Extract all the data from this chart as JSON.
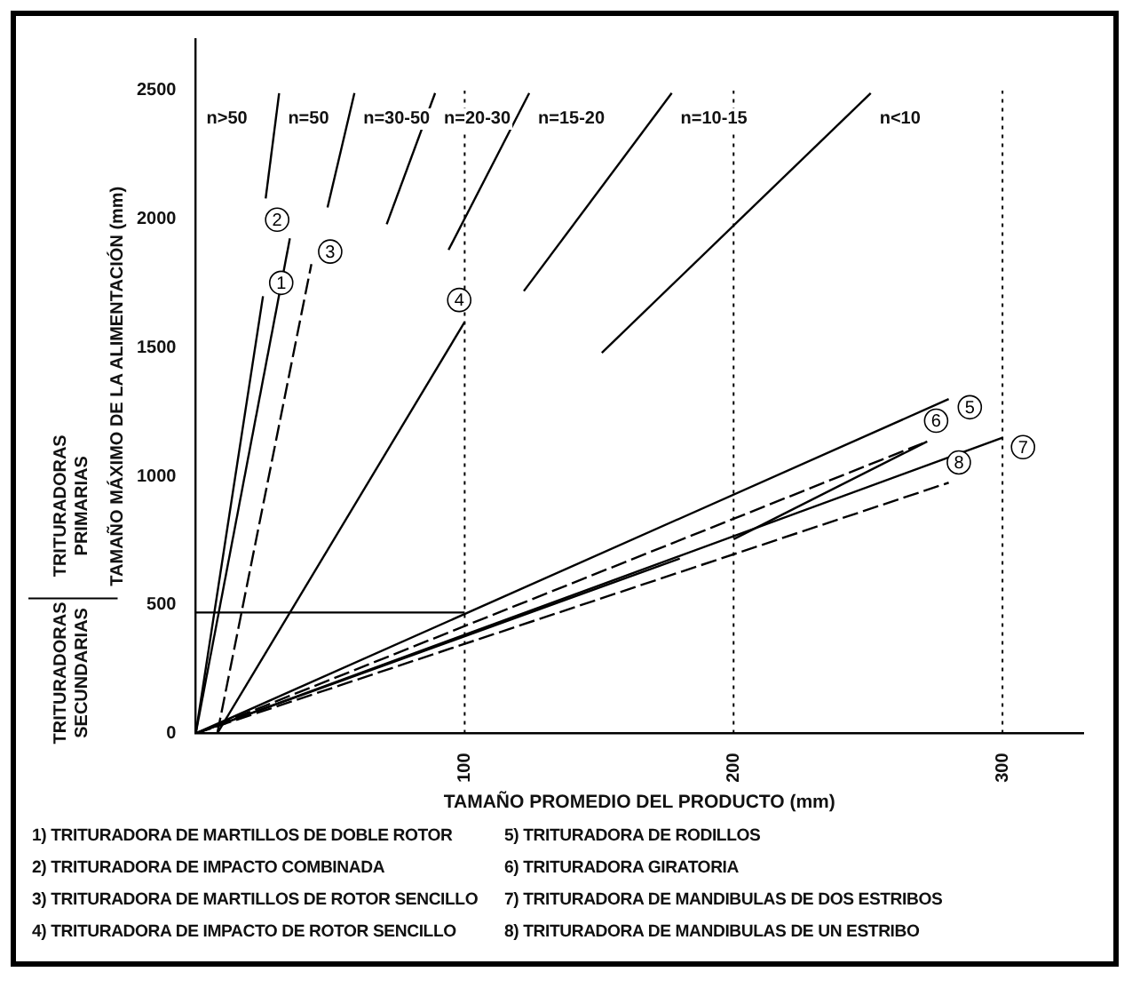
{
  "chart_data": {
    "type": "line",
    "xlabel": "TAMAÑO PROMEDIO DEL PRODUCTO (mm)",
    "ylabel": "TAMAÑO MÁXIMO DE LA ALIMENTACIÓN (mm)",
    "xlim": [
      0,
      330
    ],
    "ylim": [
      0,
      2700
    ],
    "xticks": [
      100,
      200,
      300
    ],
    "yticks": [
      0,
      500,
      1000,
      1500,
      2000,
      2500
    ],
    "grid": false,
    "legend": "bottom",
    "marker": "none",
    "series": [
      {
        "name": "1",
        "color": "#000000",
        "x": [
          0,
          25
        ],
        "values": [
          0,
          1700
        ],
        "line_style": "solid"
      },
      {
        "name": "2",
        "color": "#000000",
        "x": [
          0,
          35
        ],
        "values": [
          0,
          1925
        ],
        "line_style": "solid"
      },
      {
        "name": "3",
        "color": "#000000",
        "x": [
          8,
          43
        ],
        "values": [
          0,
          1825
        ],
        "line_style": "dashed"
      },
      {
        "name": "4",
        "color": "#000000",
        "x": [
          8,
          100
        ],
        "values": [
          0,
          1600
        ],
        "line_style": "solid"
      },
      {
        "name": "5",
        "color": "#000000",
        "x": [
          0,
          280
        ],
        "values": [
          0,
          1300
        ],
        "line_style": "solid"
      },
      {
        "name": "6",
        "color": "#000000",
        "x": [
          0,
          272
        ],
        "values": [
          0,
          1135
        ],
        "line_style": "dashed"
      },
      {
        "name": "7",
        "color": "#000000",
        "x": [
          0,
          300
        ],
        "values": [
          0,
          1150
        ],
        "line_style": "solid"
      },
      {
        "name": "8",
        "color": "#000000",
        "x": [
          0,
          280
        ],
        "values": [
          0,
          975
        ],
        "line_style": "dashed"
      },
      {
        "color": "#000000",
        "x": [
          0,
          180
        ],
        "values": [
          0,
          680
        ],
        "line_style": "solid"
      },
      {
        "color": "#000000",
        "x": [
          200,
          272
        ],
        "values": [
          755,
          1135
        ],
        "line_style": "solid"
      },
      {
        "color": "#000000",
        "x": [
          0,
          100
        ],
        "values": [
          470,
          470
        ],
        "line_style": "solid"
      },
      {
        "color": "#000000",
        "x": [
          26,
          31
        ],
        "values": [
          2080,
          2490
        ],
        "line_style": "solid"
      },
      {
        "color": "#000000",
        "x": [
          49,
          59
        ],
        "values": [
          2045,
          2490
        ],
        "line_style": "solid"
      },
      {
        "color": "#000000",
        "x": [
          71,
          89
        ],
        "values": [
          1980,
          2490
        ],
        "line_style": "solid"
      },
      {
        "color": "#000000",
        "x": [
          94,
          124
        ],
        "values": [
          1880,
          2490
        ],
        "line_style": "solid"
      },
      {
        "color": "#000000",
        "x": [
          122,
          177
        ],
        "values": [
          1720,
          2490
        ],
        "line_style": "solid"
      },
      {
        "color": "#000000",
        "x": [
          151,
          251
        ],
        "values": [
          1480,
          2490
        ],
        "line_style": "solid"
      }
    ],
    "ref_lines": [
      {
        "axis": "x",
        "value": 100,
        "color": "#000000",
        "line_style": "dotted"
      },
      {
        "axis": "x",
        "value": 200,
        "color": "#000000",
        "line_style": "dotted"
      },
      {
        "axis": "x",
        "value": 300,
        "color": "#000000",
        "line_style": "dotted"
      }
    ],
    "annotations": [
      "n>50",
      "n=50",
      "n=30-50",
      "n=20-30",
      "n=15-20",
      "n=10-15",
      "n<10",
      "TRITURADORAS PRIMARIAS",
      "TRITURADORAS SECUNDARIAS",
      "1) TRITURADORA DE MARTILLOS DE DOBLE ROTOR",
      "2) TRITURADORA DE IMPACTO COMBINADA",
      "3) TRITURADORA DE MARTILLOS DE ROTOR SENCILLO",
      "4) TRITURADORA DE IMPACTO DE ROTOR SENCILLO",
      "5) TRITURADORA DE RODILLOS",
      "6) TRITURADORA GIRATORIA",
      "7) TRITURADORA DE MANDIBULAS DE DOS ESTRIBOS",
      "8) TRITURADORA DE MANDIBULAS DE UN ESTRIBO"
    ]
  }
}
